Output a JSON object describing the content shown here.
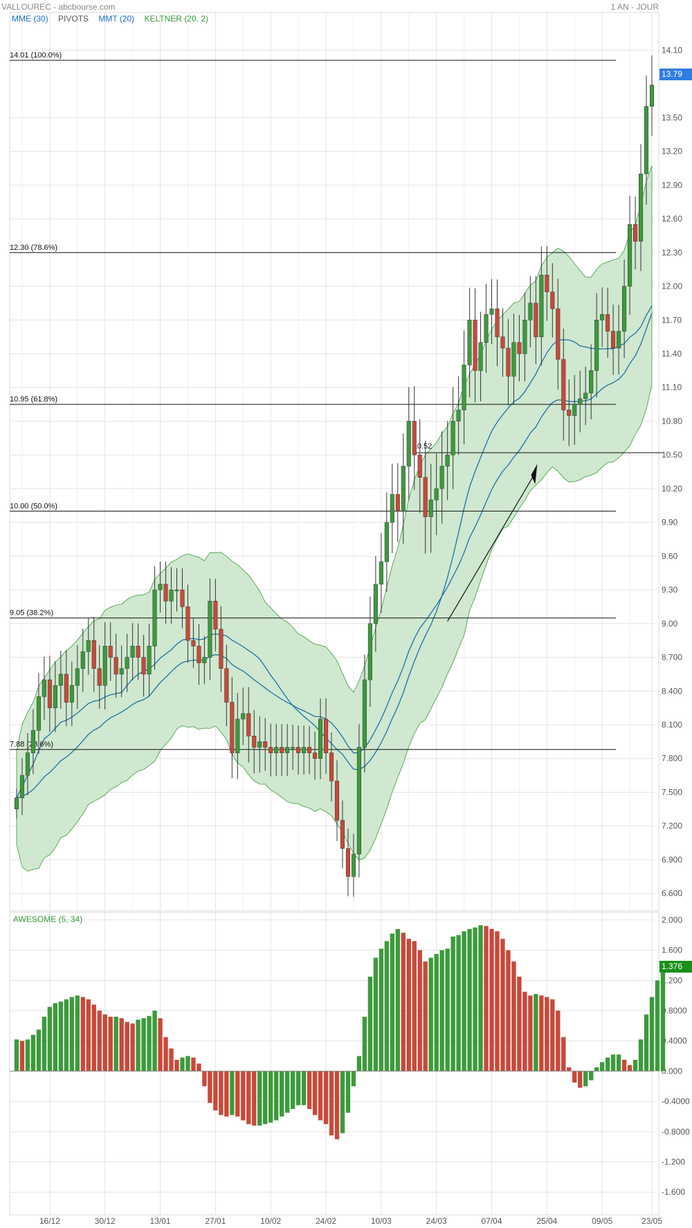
{
  "header": {
    "title": "VALLOUREC - abcbourse.com",
    "period": "1 AN - JOUR"
  },
  "legend": {
    "items": [
      {
        "label": "MME (30)",
        "color": "#1f6fc5"
      },
      {
        "label": "PIVOTS",
        "color": "#555555"
      },
      {
        "label": "MMT (20)",
        "color": "#1f6fc5"
      },
      {
        "label": "KELTNER (20, 2)",
        "color": "#3a9a3a"
      }
    ]
  },
  "price_tag": {
    "value": "13.79",
    "color": "#2e7de0"
  },
  "oscillator": {
    "title": "AWESOME (5, 34)",
    "title_color": "#3a9a3a",
    "value": "1.376",
    "tag_color": "#1a8f1a"
  },
  "colors": {
    "up": "#3c9a3c",
    "down": "#c8493a",
    "band_fill": "#cfe8cf",
    "band_line": "#5aab5a",
    "ma_line": "#1f6fa5",
    "grid": "#e3e3e3"
  },
  "chart_data": [
    {
      "type": "candlestick",
      "title": "VALLOUREC",
      "x_tick_labels": [
        "16/12",
        "30/12",
        "13/01",
        "27/01",
        "10/02",
        "24/02",
        "10/03",
        "24/03",
        "07/04",
        "25/04",
        "09/05",
        "23/05"
      ],
      "y_tick_labels": [
        "14.10",
        "13.50",
        "13.20",
        "12.90",
        "12.60",
        "12.30",
        "12.00",
        "11.70",
        "11.40",
        "11.10",
        "10.80",
        "10.50",
        "10.20",
        "9.90",
        "9.60",
        "9.30",
        "9.00",
        "8.700",
        "8.400",
        "8.100",
        "7.800",
        "7.500",
        "7.200",
        "6.900",
        "6.600"
      ],
      "ylim": [
        6.45,
        14.3
      ],
      "fibonacci_levels": [
        {
          "label": "14.01  (100.0%)",
          "value": 14.01
        },
        {
          "label": "12.30  (78.6%)",
          "value": 12.3
        },
        {
          "label": "10.95  (61.8%)",
          "value": 10.95
        },
        {
          "label": "10.00  (50.0%)",
          "value": 10.0
        },
        {
          "label": "9.05  (38.2%)",
          "value": 9.05
        },
        {
          "label": "7.88  (23.6%)",
          "value": 7.88
        }
      ],
      "pivot_level": {
        "label": "10.52",
        "value": 10.52
      },
      "last_price": 13.79,
      "close": [
        7.45,
        7.65,
        7.85,
        8.05,
        8.35,
        8.5,
        8.25,
        8.45,
        8.55,
        8.3,
        8.45,
        8.6,
        8.75,
        8.85,
        8.6,
        8.45,
        8.8,
        8.7,
        8.55,
        8.6,
        8.7,
        8.8,
        8.7,
        8.55,
        8.8,
        9.3,
        9.35,
        9.2,
        9.3,
        9.3,
        9.15,
        8.85,
        8.8,
        8.65,
        8.7,
        9.2,
        8.95,
        8.6,
        8.3,
        7.85,
        8.15,
        8.2,
        8.0,
        7.9,
        7.95,
        7.9,
        7.85,
        7.9,
        7.85,
        7.9,
        7.9,
        7.85,
        7.9,
        7.85,
        7.8,
        8.15,
        7.85,
        7.6,
        7.25,
        7.0,
        6.75,
        6.95,
        7.9,
        8.5,
        9.0,
        9.35,
        9.55,
        9.9,
        10.15,
        10.0,
        10.4,
        10.8,
        10.5,
        10.3,
        9.95,
        10.1,
        10.2,
        10.4,
        10.5,
        10.8,
        10.9,
        11.3,
        11.7,
        11.25,
        11.5,
        11.75,
        11.8,
        11.55,
        11.45,
        11.2,
        11.5,
        11.4,
        11.7,
        11.85,
        11.55,
        12.1,
        11.95,
        11.8,
        11.35,
        10.9,
        10.85,
        10.95,
        11.0,
        11.05,
        11.25,
        11.7,
        11.75,
        11.6,
        11.45,
        11.6,
        12.0,
        12.55,
        12.4,
        13.0,
        13.6,
        13.79
      ]
    },
    {
      "type": "bar",
      "title": "AWESOME (5, 34)",
      "y_tick_labels": [
        "2.000",
        "1.600",
        "1.200",
        "0.8000",
        "0.4000",
        "0.000",
        "-0.4000",
        "-0.8000",
        "-1.200",
        "-1.600"
      ],
      "ylim": [
        -1.9,
        2.1
      ],
      "values": [
        0.42,
        0.4,
        0.42,
        0.48,
        0.55,
        0.72,
        0.85,
        0.9,
        0.92,
        0.95,
        0.98,
        1.0,
        0.98,
        0.95,
        0.88,
        0.8,
        0.75,
        0.72,
        0.72,
        0.7,
        0.65,
        0.63,
        0.68,
        0.7,
        0.73,
        0.8,
        0.7,
        0.45,
        0.3,
        0.15,
        0.18,
        0.2,
        0.18,
        0.1,
        -0.2,
        -0.42,
        -0.52,
        -0.58,
        -0.6,
        -0.58,
        -0.6,
        -0.65,
        -0.7,
        -0.72,
        -0.72,
        -0.7,
        -0.68,
        -0.65,
        -0.6,
        -0.55,
        -0.5,
        -0.45,
        -0.45,
        -0.5,
        -0.58,
        -0.65,
        -0.7,
        -0.85,
        -0.9,
        -0.82,
        -0.55,
        -0.2,
        0.2,
        0.72,
        1.25,
        1.5,
        1.62,
        1.72,
        1.82,
        1.88,
        1.83,
        1.75,
        1.72,
        1.6,
        1.45,
        1.5,
        1.55,
        1.6,
        1.62,
        1.78,
        1.8,
        1.85,
        1.88,
        1.9,
        1.93,
        1.92,
        1.88,
        1.85,
        1.75,
        1.6,
        1.45,
        1.25,
        1.05,
        1.0,
        1.02,
        1.0,
        0.98,
        0.95,
        0.8,
        0.45,
        0.05,
        -0.15,
        -0.22,
        -0.2,
        -0.12,
        0.05,
        0.12,
        0.18,
        0.22,
        0.22,
        0.15,
        0.08,
        0.15,
        0.42,
        0.75,
        0.98,
        1.2,
        1.376
      ]
    }
  ]
}
